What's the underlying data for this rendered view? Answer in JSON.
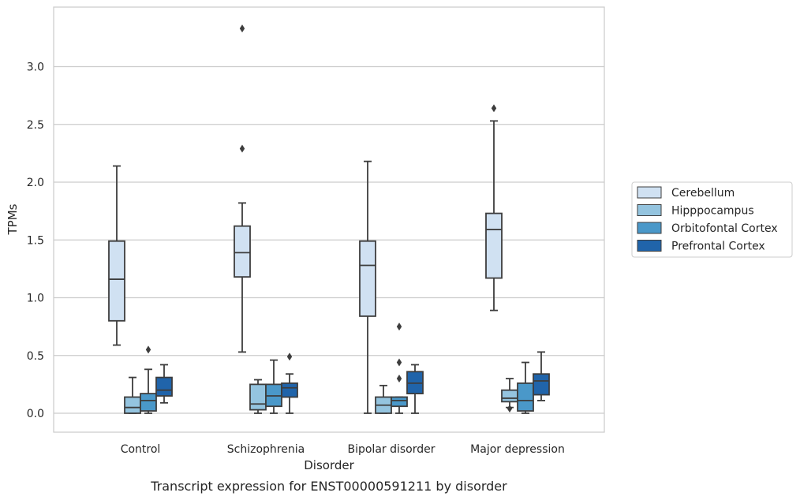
{
  "chart_data": {
    "type": "box",
    "caption": "Transcript expression for ENST00000591211 by disorder",
    "xlabel": "Disorder",
    "ylabel": "TPMs",
    "ylim": [
      -0.16,
      3.52
    ],
    "yticks": [
      0.0,
      0.5,
      1.0,
      1.5,
      2.0,
      2.5,
      3.0
    ],
    "ytick_labels": [
      "0.0",
      "0.5",
      "1.0",
      "1.5",
      "2.0",
      "2.5",
      "3.0"
    ],
    "grid": true,
    "legend_position": "right",
    "categories": [
      "Control",
      "Schizophrenia",
      "Bipolar disorder",
      "Major depression"
    ],
    "series": [
      {
        "name": "Cerebellum",
        "color": "#d0e1f2",
        "boxes": [
          {
            "whisker_low": 0.59,
            "q1": 0.8,
            "median": 1.16,
            "q3": 1.49,
            "whisker_high": 2.14,
            "outliers": []
          },
          {
            "whisker_low": 0.53,
            "q1": 1.18,
            "median": 1.39,
            "q3": 1.62,
            "whisker_high": 1.82,
            "outliers": [
              2.29,
              3.33
            ]
          },
          {
            "whisker_low": 0.0,
            "q1": 0.84,
            "median": 1.28,
            "q3": 1.49,
            "whisker_high": 2.18,
            "outliers": []
          },
          {
            "whisker_low": 0.89,
            "q1": 1.17,
            "median": 1.59,
            "q3": 1.73,
            "whisker_high": 2.53,
            "outliers": [
              2.64
            ]
          }
        ]
      },
      {
        "name": "Hipppocampus",
        "color": "#94c4df",
        "boxes": [
          {
            "whisker_low": 0.0,
            "q1": 0.0,
            "median": 0.05,
            "q3": 0.14,
            "whisker_high": 0.31,
            "outliers": []
          },
          {
            "whisker_low": 0.0,
            "q1": 0.03,
            "median": 0.08,
            "q3": 0.25,
            "whisker_high": 0.29,
            "outliers": []
          },
          {
            "whisker_low": 0.0,
            "q1": 0.0,
            "median": 0.07,
            "q3": 0.14,
            "whisker_high": 0.24,
            "outliers": []
          },
          {
            "whisker_low": 0.05,
            "q1": 0.1,
            "median": 0.13,
            "q3": 0.2,
            "whisker_high": 0.3,
            "outliers": [
              0.04
            ]
          }
        ]
      },
      {
        "name": "Orbitofontal Cortex",
        "color": "#4a98c9",
        "boxes": [
          {
            "whisker_low": 0.0,
            "q1": 0.02,
            "median": 0.11,
            "q3": 0.17,
            "whisker_high": 0.38,
            "outliers": [
              0.55
            ]
          },
          {
            "whisker_low": 0.0,
            "q1": 0.06,
            "median": 0.15,
            "q3": 0.25,
            "whisker_high": 0.46,
            "outliers": []
          },
          {
            "whisker_low": 0.0,
            "q1": 0.06,
            "median": 0.11,
            "q3": 0.14,
            "whisker_high": 0.14,
            "outliers": [
              0.3,
              0.44,
              0.75
            ]
          },
          {
            "whisker_low": 0.0,
            "q1": 0.02,
            "median": 0.11,
            "q3": 0.26,
            "whisker_high": 0.44,
            "outliers": []
          }
        ]
      },
      {
        "name": "Prefrontal Cortex",
        "color": "#2064aa",
        "boxes": [
          {
            "whisker_low": 0.09,
            "q1": 0.15,
            "median": 0.2,
            "q3": 0.31,
            "whisker_high": 0.42,
            "outliers": []
          },
          {
            "whisker_low": 0.0,
            "q1": 0.14,
            "median": 0.22,
            "q3": 0.26,
            "whisker_high": 0.34,
            "outliers": [
              0.49
            ]
          },
          {
            "whisker_low": 0.0,
            "q1": 0.17,
            "median": 0.26,
            "q3": 0.36,
            "whisker_high": 0.42,
            "outliers": []
          },
          {
            "whisker_low": 0.11,
            "q1": 0.16,
            "median": 0.28,
            "q3": 0.34,
            "whisker_high": 0.53,
            "outliers": []
          }
        ]
      }
    ]
  }
}
